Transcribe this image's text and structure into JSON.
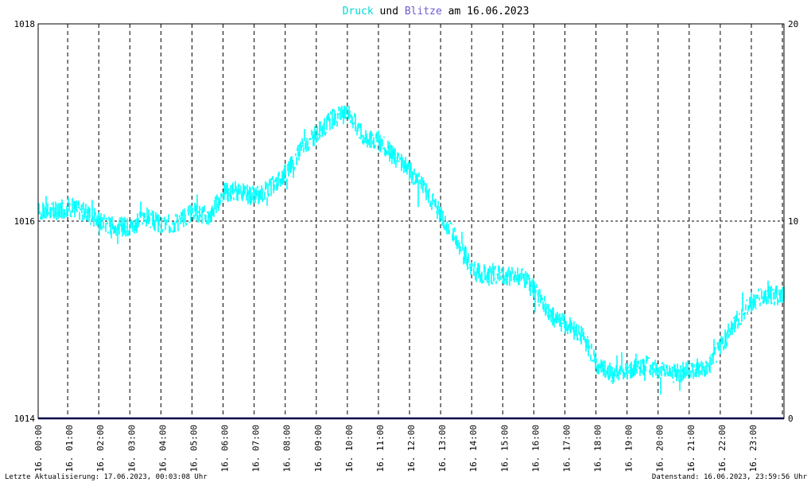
{
  "title": {
    "part1": "Druck",
    "part2": " und ",
    "part3": "Blitze",
    "part4": " am 16.06.2023"
  },
  "footer": {
    "left": "Letzte Aktualisierung: 17.06.2023, 00:03:08 Uhr",
    "right": "Datenstand: 16.06.2023, 23:59:56 Uhr"
  },
  "colors": {
    "druck": "#00ffff",
    "blitze": "#000080",
    "title_druck": "#00d8d8",
    "title_blitze": "#6e5cd0",
    "grid": "#000000",
    "frame": "#000000"
  },
  "chart_data": {
    "type": "line",
    "y_left": {
      "ylim": [
        1014,
        1018
      ],
      "ticks": [
        "1014",
        "1016",
        "1018"
      ]
    },
    "y_right": {
      "ylim": [
        0,
        20
      ],
      "ticks": [
        "0",
        "10",
        "20"
      ]
    },
    "x_range_hours": [
      0,
      24
    ],
    "x_ticks": [
      "16. 00:00",
      "16. 01:00",
      "16. 02:00",
      "16. 03:00",
      "16. 04:00",
      "16. 05:00",
      "16. 06:00",
      "16. 07:00",
      "16. 08:00",
      "16. 09:00",
      "16. 10:00",
      "16. 11:00",
      "16. 12:00",
      "16. 13:00",
      "16. 14:00",
      "16. 15:00",
      "16. 16:00",
      "16. 17:00",
      "16. 18:00",
      "16. 19:00",
      "16. 20:00",
      "16. 21:00",
      "16. 22:00",
      "16. 23:00"
    ],
    "grid": true,
    "series": [
      {
        "name": "Druck",
        "axis": "left",
        "x": [
          0.0,
          0.5,
          1.0,
          1.5,
          2.0,
          2.5,
          3.0,
          3.5,
          4.0,
          4.5,
          5.0,
          5.5,
          6.0,
          6.5,
          7.0,
          7.5,
          8.0,
          8.5,
          9.0,
          9.5,
          10.0,
          10.5,
          11.0,
          11.5,
          12.0,
          12.5,
          13.0,
          13.5,
          14.0,
          14.5,
          15.0,
          15.5,
          16.0,
          16.5,
          17.0,
          17.5,
          18.0,
          18.5,
          19.0,
          19.5,
          20.0,
          20.5,
          21.0,
          21.5,
          22.0,
          22.5,
          23.0,
          23.5,
          24.0
        ],
        "values": [
          1016.1,
          1016.1,
          1016.15,
          1016.1,
          1016.0,
          1015.95,
          1015.95,
          1016.05,
          1015.95,
          1016.0,
          1016.1,
          1016.05,
          1016.3,
          1016.3,
          1016.25,
          1016.35,
          1016.5,
          1016.75,
          1016.9,
          1017.05,
          1017.1,
          1016.85,
          1016.8,
          1016.65,
          1016.5,
          1016.3,
          1016.05,
          1015.8,
          1015.5,
          1015.45,
          1015.45,
          1015.45,
          1015.3,
          1015.05,
          1014.95,
          1014.85,
          1014.55,
          1014.45,
          1014.5,
          1014.55,
          1014.5,
          1014.45,
          1014.5,
          1014.5,
          1014.75,
          1015.0,
          1015.2,
          1015.25,
          1015.25
        ]
      },
      {
        "name": "Blitze",
        "axis": "right",
        "x": [
          0,
          24
        ],
        "values": [
          0,
          0
        ]
      }
    ]
  }
}
